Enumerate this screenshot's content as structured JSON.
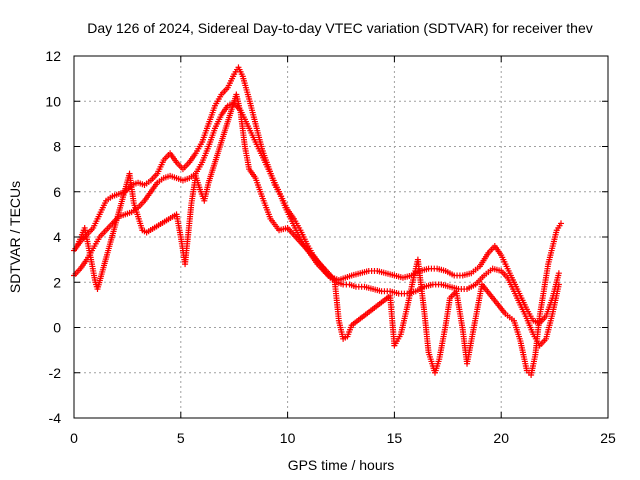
{
  "chart_data": {
    "type": "scatter",
    "title": "Day 126 of 2024, Sidereal Day-to-day VTEC variation (SDTVAR) for receiver thev",
    "xlabel": "GPS time / hours",
    "ylabel": "SDTVAR / TECUs",
    "xlim": [
      0,
      25
    ],
    "ylim": [
      -4,
      12
    ],
    "xticks": [
      0,
      5,
      10,
      15,
      20,
      25
    ],
    "yticks": [
      -4,
      -2,
      0,
      2,
      4,
      6,
      8,
      10,
      12
    ],
    "grid": true,
    "legend": "none",
    "marker": "+",
    "color": "#ff0000",
    "series": [
      {
        "name": "trace-main-upper",
        "x": [
          0.0,
          0.3,
          0.6,
          0.9,
          1.2,
          1.5,
          1.8,
          2.1,
          2.4,
          2.7,
          3.0,
          3.3,
          3.6,
          3.9,
          4.2,
          4.5,
          4.8,
          5.1,
          5.4,
          5.7,
          6.0,
          6.3,
          6.6,
          6.9,
          7.2,
          7.5,
          7.7,
          7.9,
          8.2,
          8.5,
          8.8,
          9.1,
          9.4,
          9.7,
          10.0,
          10.3,
          10.6,
          10.9,
          11.2,
          11.5,
          11.8,
          12.1,
          12.4,
          12.7,
          13.0,
          13.4,
          13.8,
          14.2,
          14.6,
          15.0,
          15.4,
          15.8,
          16.2,
          16.6,
          17.0,
          17.4,
          17.8,
          18.2,
          18.6,
          19.0,
          19.4,
          19.7,
          20.0,
          20.3,
          20.6,
          20.9,
          21.2,
          21.5,
          21.8,
          22.1,
          22.4,
          22.7
        ],
        "y": [
          3.4,
          3.8,
          4.1,
          4.4,
          5.0,
          5.6,
          5.8,
          5.9,
          6.0,
          6.3,
          6.4,
          6.3,
          6.5,
          6.8,
          7.4,
          7.7,
          7.3,
          7.0,
          7.3,
          7.7,
          8.2,
          9.0,
          9.8,
          10.3,
          10.6,
          11.2,
          11.5,
          11.1,
          10.1,
          9.0,
          7.9,
          7.1,
          6.3,
          5.8,
          5.2,
          4.8,
          4.3,
          3.7,
          3.2,
          2.8,
          2.4,
          2.2,
          2.1,
          2.2,
          2.3,
          2.4,
          2.5,
          2.5,
          2.4,
          2.3,
          2.2,
          2.3,
          2.5,
          2.6,
          2.6,
          2.5,
          2.3,
          2.3,
          2.4,
          2.7,
          3.3,
          3.6,
          3.2,
          2.6,
          2.0,
          1.4,
          0.8,
          0.3,
          0.2,
          0.5,
          1.3,
          2.4
        ]
      },
      {
        "name": "trace-main-lower",
        "x": [
          0.0,
          0.3,
          0.6,
          0.9,
          1.2,
          1.5,
          1.8,
          2.1,
          2.4,
          2.7,
          3.0,
          3.3,
          3.6,
          3.9,
          4.2,
          4.5,
          4.8,
          5.1,
          5.4,
          5.7,
          6.0,
          6.3,
          6.6,
          6.9,
          7.2,
          7.5,
          7.8,
          8.1,
          8.4,
          8.7,
          9.0,
          9.3,
          9.6,
          9.9,
          10.2,
          10.5,
          10.8,
          11.1,
          11.4,
          11.7,
          12.0,
          12.3,
          12.6,
          12.9,
          13.2,
          13.6,
          14.0,
          14.4,
          14.8,
          15.2,
          15.6,
          16.0,
          16.4,
          16.8,
          17.2,
          17.6,
          18.0,
          18.4,
          18.8,
          19.2,
          19.6,
          20.0,
          20.3,
          20.6,
          20.9,
          21.2,
          21.5,
          21.8,
          22.1,
          22.4,
          22.7
        ],
        "y": [
          2.3,
          2.6,
          3.0,
          3.5,
          4.0,
          4.3,
          4.6,
          4.9,
          5.0,
          5.1,
          5.3,
          5.6,
          6.0,
          6.4,
          6.6,
          6.7,
          6.6,
          6.5,
          6.6,
          6.8,
          7.3,
          8.0,
          8.8,
          9.4,
          9.8,
          9.9,
          9.6,
          9.0,
          8.4,
          7.8,
          7.2,
          6.6,
          6.0,
          5.3,
          4.7,
          4.1,
          3.6,
          3.2,
          2.8,
          2.5,
          2.2,
          2.0,
          1.9,
          1.9,
          1.8,
          1.8,
          1.7,
          1.6,
          1.6,
          1.5,
          1.5,
          1.6,
          1.8,
          1.9,
          1.9,
          1.8,
          1.7,
          1.7,
          1.9,
          2.3,
          2.6,
          2.5,
          2.2,
          1.6,
          1.0,
          0.4,
          -0.3,
          -0.8,
          -0.5,
          0.6,
          1.9
        ]
      },
      {
        "name": "trace-excursions",
        "x": [
          0.2,
          0.5,
          0.8,
          1.0,
          1.1,
          2.6,
          2.8,
          3.2,
          3.4,
          4.8,
          5.0,
          5.2,
          5.5,
          5.7,
          5.9,
          6.1,
          6.3,
          7.6,
          7.8,
          8.0,
          8.2,
          8.5,
          8.8,
          9.2,
          9.6,
          10.0,
          12.2,
          12.4,
          12.6,
          12.8,
          13.0,
          14.8,
          15.0,
          15.3,
          15.6,
          15.9,
          16.1,
          16.4,
          16.6,
          16.9,
          17.1,
          17.4,
          17.6,
          17.9,
          18.2,
          18.4,
          18.6,
          18.9,
          19.1,
          20.2,
          20.6,
          20.9,
          21.2,
          21.4,
          21.6,
          21.8,
          22.2,
          22.6,
          22.8
        ],
        "y": [
          3.7,
          4.4,
          3.0,
          2.0,
          1.7,
          6.8,
          5.5,
          4.3,
          4.2,
          5.0,
          4.0,
          2.8,
          5.5,
          6.7,
          6.1,
          5.6,
          6.4,
          10.3,
          9.5,
          8.0,
          7.0,
          6.6,
          5.8,
          4.8,
          4.3,
          4.4,
          2.1,
          0.3,
          -0.5,
          -0.4,
          0.1,
          1.4,
          -0.8,
          -0.3,
          0.9,
          2.2,
          3.0,
          0.7,
          -1.1,
          -2.0,
          -1.4,
          0.1,
          1.3,
          1.6,
          -0.1,
          -1.6,
          -0.6,
          0.9,
          1.9,
          0.6,
          0.3,
          -0.6,
          -1.9,
          -2.1,
          -1.2,
          0.5,
          2.8,
          4.3,
          4.6
        ]
      }
    ]
  }
}
